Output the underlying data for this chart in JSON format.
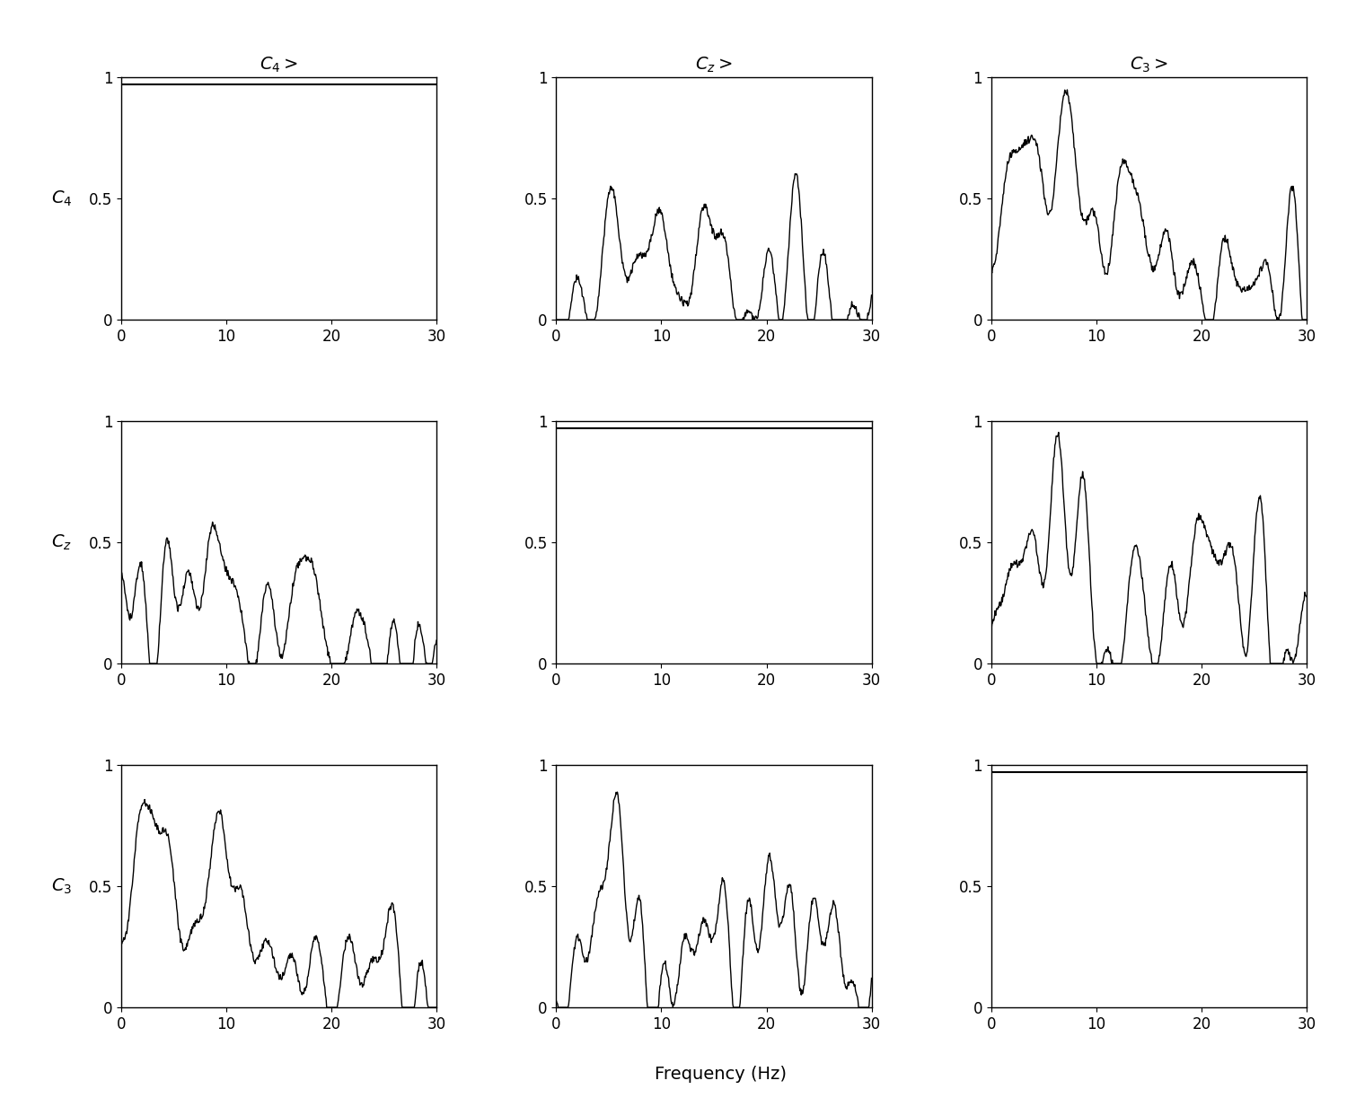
{
  "row_labels": [
    "C_4",
    "C_z",
    "C_3"
  ],
  "col_labels": [
    "C_4>",
    "C_z>",
    "C_3>"
  ],
  "xlabel": "Frequency (Hz)",
  "xlim": [
    0,
    30
  ],
  "ylim": [
    0,
    1
  ],
  "xticks": [
    0,
    10,
    20,
    30
  ],
  "yticks": [
    0,
    0.5,
    1
  ],
  "ytick_labels": [
    "0",
    "0.5",
    "1"
  ],
  "diagonal_value": 0.97,
  "line_color": "#000000",
  "line_width": 1.0,
  "bg_color": "#ffffff",
  "fig_width": 15.0,
  "fig_height": 12.33,
  "dpi": 100,
  "title_fontsize": 14,
  "label_fontsize": 14,
  "tick_fontsize": 12
}
